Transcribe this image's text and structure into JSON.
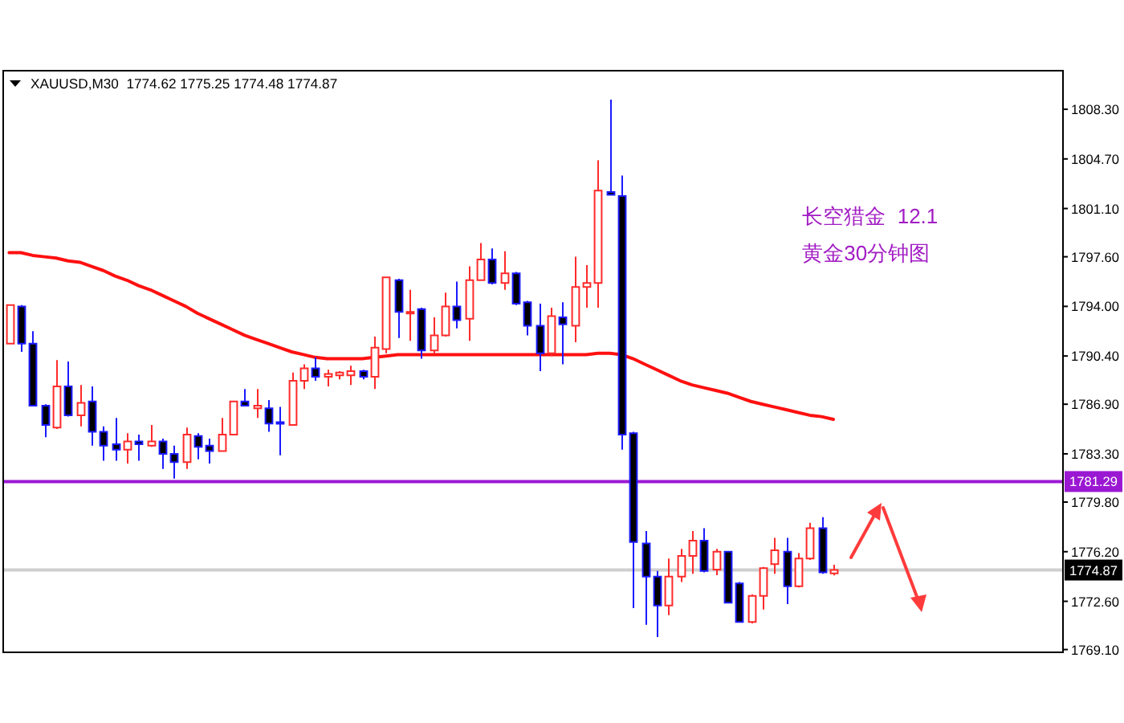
{
  "chart_data": {
    "type": "candlestick",
    "title": "XAUUSD,M30  1774.62 1775.25 1774.48 1774.87",
    "categories": [
      null,
      null,
      null,
      null,
      null,
      null,
      null,
      null,
      null,
      null,
      null,
      null,
      null,
      null,
      null,
      null,
      null,
      null,
      null,
      null,
      null,
      null,
      null,
      null,
      null,
      null,
      null,
      null,
      null,
      null,
      null,
      null,
      null,
      null,
      null,
      null,
      null,
      null,
      null,
      null,
      null,
      null,
      null,
      null,
      null,
      null,
      null,
      null,
      null,
      null,
      null,
      null,
      null,
      null,
      null,
      null,
      null,
      null,
      null,
      null,
      null,
      null,
      null,
      null,
      null,
      null,
      null,
      null,
      null,
      null,
      null,
      null,
      null,
      null,
      null,
      null,
      null,
      null,
      null,
      null,
      null,
      null,
      null,
      null,
      null,
      null,
      null,
      null,
      null,
      null
    ],
    "ohlc": [
      [
        1791.3,
        1794.1,
        1791.3,
        1794.1
      ],
      [
        1794.0,
        1794.1,
        1790.7,
        1791.3
      ],
      [
        1791.3,
        1792.2,
        1786.8,
        1786.8
      ],
      [
        1786.8,
        1786.9,
        1784.5,
        1785.4
      ],
      [
        1785.2,
        1790.1,
        1785.1,
        1788.2
      ],
      [
        1788.2,
        1790.0,
        1786.0,
        1786.1
      ],
      [
        1786.1,
        1788.3,
        1785.3,
        1787.0
      ],
      [
        1787.1,
        1788.2,
        1783.9,
        1784.9
      ],
      [
        1784.9,
        1785.3,
        1782.8,
        1783.9
      ],
      [
        1784.0,
        1785.9,
        1782.8,
        1783.6
      ],
      [
        1783.6,
        1784.8,
        1782.6,
        1784.2
      ],
      [
        1784.2,
        1784.7,
        1782.8,
        1784.0
      ],
      [
        1783.9,
        1785.4,
        1783.8,
        1784.2
      ],
      [
        1784.2,
        1784.4,
        1782.2,
        1783.3
      ],
      [
        1783.3,
        1783.9,
        1781.5,
        1782.7
      ],
      [
        1782.7,
        1785.2,
        1782.2,
        1784.7
      ],
      [
        1784.6,
        1784.8,
        1782.9,
        1783.8
      ],
      [
        1783.9,
        1784.4,
        1782.6,
        1783.5
      ],
      [
        1783.5,
        1785.9,
        1783.5,
        1784.7
      ],
      [
        1784.7,
        1787.1,
        1784.7,
        1787.1
      ],
      [
        1787.1,
        1788.0,
        1786.8,
        1786.8
      ],
      [
        1786.6,
        1788.0,
        1785.9,
        1786.8
      ],
      [
        1786.6,
        1787.2,
        1784.9,
        1785.5
      ],
      [
        1785.6,
        1786.7,
        1783.2,
        1785.5
      ],
      [
        1785.4,
        1789.2,
        1785.4,
        1788.6
      ],
      [
        1788.6,
        1789.8,
        1788.0,
        1789.5
      ],
      [
        1789.5,
        1790.3,
        1788.6,
        1788.9
      ],
      [
        1788.9,
        1789.4,
        1788.2,
        1789.1
      ],
      [
        1789.0,
        1789.3,
        1788.7,
        1789.2
      ],
      [
        1789.0,
        1789.7,
        1788.3,
        1789.3
      ],
      [
        1789.3,
        1789.4,
        1788.7,
        1788.9
      ],
      [
        1788.9,
        1791.8,
        1788.0,
        1791.0
      ],
      [
        1790.9,
        1796.1,
        1790.6,
        1796.1
      ],
      [
        1795.9,
        1796.0,
        1791.7,
        1793.6
      ],
      [
        1793.5,
        1795.2,
        1791.5,
        1793.6
      ],
      [
        1793.8,
        1793.9,
        1790.2,
        1790.8
      ],
      [
        1790.8,
        1793.2,
        1790.6,
        1791.9
      ],
      [
        1791.9,
        1795.0,
        1791.8,
        1794.0
      ],
      [
        1794.0,
        1795.8,
        1792.4,
        1793.0
      ],
      [
        1793.1,
        1796.9,
        1791.5,
        1795.9
      ],
      [
        1795.9,
        1798.6,
        1795.9,
        1797.4
      ],
      [
        1797.4,
        1798.2,
        1795.6,
        1795.7
      ],
      [
        1795.7,
        1798.0,
        1795.2,
        1796.4
      ],
      [
        1796.4,
        1796.5,
        1794.1,
        1794.2
      ],
      [
        1794.3,
        1794.4,
        1791.9,
        1792.6
      ],
      [
        1792.6,
        1794.2,
        1789.3,
        1790.6
      ],
      [
        1790.6,
        1793.9,
        1790.4,
        1793.3
      ],
      [
        1793.2,
        1794.3,
        1789.8,
        1792.7
      ],
      [
        1792.6,
        1797.6,
        1791.4,
        1795.4
      ],
      [
        1795.4,
        1797.0,
        1793.9,
        1795.7
      ],
      [
        1795.7,
        1804.6,
        1793.9,
        1802.4
      ],
      [
        1802.3,
        1809.0,
        1802.1,
        1802.1
      ],
      [
        1802.0,
        1803.5,
        1783.6,
        1784.7
      ],
      [
        1784.8,
        1784.9,
        1772.1,
        1776.9
      ],
      [
        1776.8,
        1777.7,
        1770.9,
        1774.4
      ],
      [
        1774.4,
        1774.8,
        1770.0,
        1772.3
      ],
      [
        1772.3,
        1775.7,
        1771.6,
        1774.4
      ],
      [
        1774.4,
        1776.4,
        1774.0,
        1775.9
      ],
      [
        1775.9,
        1777.7,
        1774.6,
        1777.0
      ],
      [
        1777.0,
        1777.9,
        1774.7,
        1774.8
      ],
      [
        1774.9,
        1776.4,
        1774.5,
        1776.2
      ],
      [
        1776.2,
        1776.2,
        1772.5,
        1772.5
      ],
      [
        1773.9,
        1774.0,
        1771.1,
        1771.1
      ],
      [
        1771.1,
        1773.1,
        1771.0,
        1773.0
      ],
      [
        1773.0,
        1775.1,
        1772.0,
        1775.0
      ],
      [
        1775.3,
        1777.2,
        1774.6,
        1776.3
      ],
      [
        1776.2,
        1777.2,
        1772.4,
        1773.7
      ],
      [
        1773.7,
        1776.1,
        1773.6,
        1775.7
      ],
      [
        1775.7,
        1778.3,
        1775.6,
        1777.9
      ],
      [
        1777.9,
        1778.7,
        1774.6,
        1774.7
      ],
      [
        1774.62,
        1775.25,
        1774.48,
        1774.87
      ],
      null,
      null,
      null,
      null,
      null,
      null,
      null,
      null,
      null,
      null,
      null,
      null,
      null,
      null,
      null,
      null,
      null,
      null,
      null
    ],
    "series": [
      {
        "type": "line",
        "color": "#ff1010",
        "values": [
          1797.9,
          1797.9,
          1797.7,
          1797.6,
          1797.5,
          1797.3,
          1797.2,
          1796.9,
          1796.6,
          1796.2,
          1795.9,
          1795.5,
          1795.2,
          1794.8,
          1794.4,
          1794.0,
          1793.5,
          1793.1,
          1792.7,
          1792.3,
          1791.9,
          1791.6,
          1791.3,
          1791.0,
          1790.7,
          1790.5,
          1790.3,
          1790.2,
          1790.2,
          1790.2,
          1790.2,
          1790.3,
          1790.4,
          1790.5,
          1790.5,
          1790.5,
          1790.5,
          1790.5,
          1790.5,
          1790.5,
          1790.5,
          1790.5,
          1790.5,
          1790.5,
          1790.5,
          1790.5,
          1790.5,
          1790.5,
          1790.5,
          1790.5,
          1790.6,
          1790.6,
          1790.5,
          1790.2,
          1789.8,
          1789.4,
          1789.0,
          1788.6,
          1788.3,
          1788.1,
          1787.9,
          1787.7,
          1787.4,
          1787.1,
          1786.9,
          1786.7,
          1786.5,
          1786.3,
          1786.1,
          1786.0,
          1785.8,
          null,
          null,
          null,
          null,
          null,
          null,
          null,
          null,
          null,
          null,
          null,
          null,
          null,
          null,
          null,
          null,
          null,
          null,
          null
        ]
      }
    ],
    "ylim": [
      1768.9,
      1811.1
    ],
    "yticks": [
      {
        "value": 1808.3,
        "label": "1808.30"
      },
      {
        "value": 1804.7,
        "label": "1804.70"
      },
      {
        "value": 1801.1,
        "label": "1801.10"
      },
      {
        "value": 1797.6,
        "label": "1797.60"
      },
      {
        "value": 1794.0,
        "label": "1794.00"
      },
      {
        "value": 1790.4,
        "label": "1790.40"
      },
      {
        "value": 1786.9,
        "label": "1786.90"
      },
      {
        "value": 1783.3,
        "label": "1783.30"
      },
      {
        "value": 1779.8,
        "label": "1779.80"
      },
      {
        "value": 1776.2,
        "label": "1776.20"
      },
      {
        "value": 1772.6,
        "label": "1772.60"
      },
      {
        "value": 1769.1,
        "label": "1769.10"
      }
    ],
    "ref_lines": [
      {
        "axis": "y",
        "value": 1781.29,
        "label": "1781.29",
        "color": "#9b18d2"
      },
      {
        "axis": "y",
        "value": 1774.87,
        "label": "1774.87",
        "color": "#cfcfcf"
      }
    ],
    "annotations": [
      "长空猎金  12.1",
      "黄金30分钟图"
    ],
    "tick_labels": "y"
  }
}
